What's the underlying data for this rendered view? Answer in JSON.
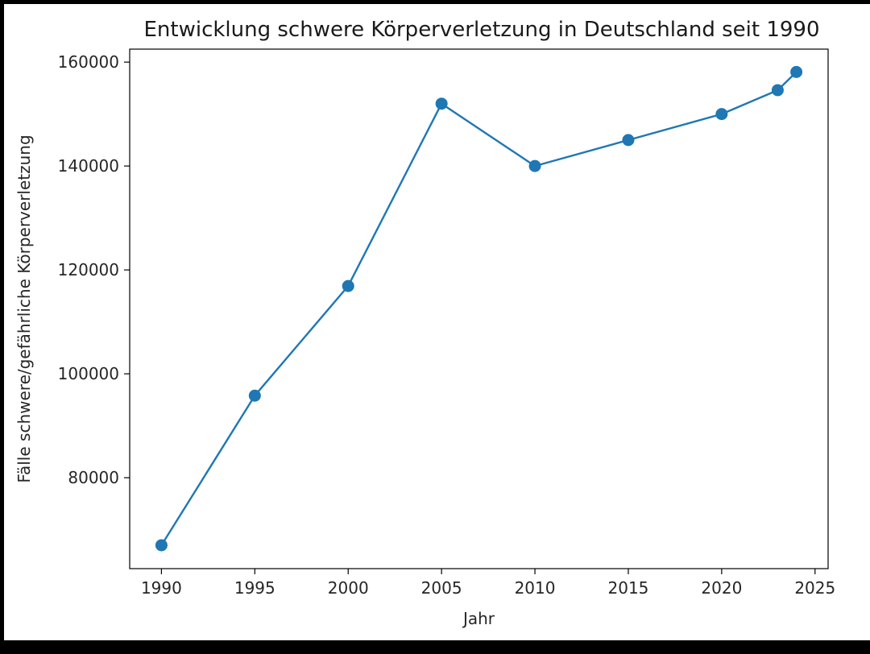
{
  "chart_data": {
    "type": "line",
    "title": "Entwicklung schwere Körperverletzung in Deutschland seit 1990",
    "xlabel": "Jahr",
    "ylabel": "Fälle schwere/gefährliche Körperverletzung",
    "x": [
      1990,
      1995,
      2000,
      2005,
      2010,
      2015,
      2020,
      2023,
      2024
    ],
    "series": [
      {
        "values": [
          67000,
          95800,
          116900,
          152000,
          140000,
          145000,
          150000,
          154600,
          158100
        ]
      }
    ],
    "xticks": [
      1990,
      1995,
      2000,
      2005,
      2010,
      2015,
      2020,
      2025
    ],
    "xtick_labels": [
      "1990",
      "1995",
      "2000",
      "2005",
      "2010",
      "2015",
      "2020",
      "2025"
    ],
    "yticks": [
      80000,
      100000,
      120000,
      140000,
      160000
    ],
    "ytick_labels": [
      "80000",
      "100000",
      "120000",
      "140000",
      "160000"
    ],
    "xlim": [
      1988.3,
      2025.7
    ],
    "ylim": [
      62500,
      162500
    ],
    "marker": "circle",
    "grid": false,
    "line_color": "#1f77b4"
  }
}
